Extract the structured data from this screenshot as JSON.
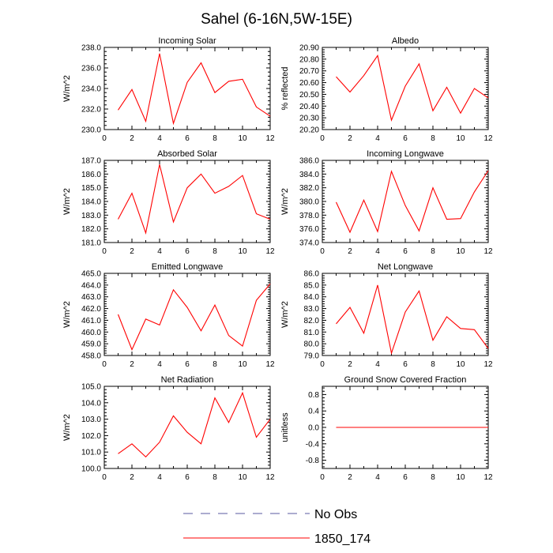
{
  "figure": {
    "title": "Sahel (6-16N,5W-15E)",
    "legend": [
      {
        "label": "No Obs",
        "color": "#5a5aa0",
        "style": "dashed"
      },
      {
        "label": "1850_174",
        "color": "#ff0000",
        "style": "solid"
      }
    ]
  },
  "chart_data": [
    {
      "type": "line",
      "title": "Incoming Solar",
      "ylabel": "W/m^2",
      "xlim": [
        0,
        12
      ],
      "xticks": [
        0,
        2,
        4,
        6,
        8,
        10,
        12
      ],
      "ylim": [
        230,
        238
      ],
      "yticks": [
        230,
        232,
        234,
        236,
        238
      ],
      "ydecimals": 1,
      "series": [
        {
          "color": "#ff0000",
          "x": [
            1,
            2,
            3,
            4,
            5,
            6,
            7,
            8,
            9,
            10,
            11,
            12
          ],
          "y": [
            231.9,
            233.9,
            230.8,
            237.4,
            230.6,
            234.6,
            236.5,
            233.6,
            234.7,
            234.9,
            232.2,
            231.3
          ]
        }
      ]
    },
    {
      "type": "line",
      "title": "Albedo",
      "ylabel": "% reflected",
      "xlim": [
        0,
        12
      ],
      "xticks": [
        0,
        2,
        4,
        6,
        8,
        10,
        12
      ],
      "ylim": [
        20.2,
        20.9
      ],
      "yticks": [
        20.2,
        20.3,
        20.4,
        20.5,
        20.6,
        20.7,
        20.8,
        20.9
      ],
      "ydecimals": 2,
      "series": [
        {
          "color": "#ff0000",
          "x": [
            1,
            2,
            3,
            4,
            5,
            6,
            7,
            8,
            9,
            10,
            11,
            12
          ],
          "y": [
            20.65,
            20.52,
            20.66,
            20.83,
            20.28,
            20.57,
            20.76,
            20.36,
            20.56,
            20.34,
            20.55,
            20.47
          ]
        }
      ]
    },
    {
      "type": "line",
      "title": "Absorbed Solar",
      "ylabel": "W/m^2",
      "xlim": [
        0,
        12
      ],
      "xticks": [
        0,
        2,
        4,
        6,
        8,
        10,
        12
      ],
      "ylim": [
        181,
        187
      ],
      "yticks": [
        181,
        182,
        183,
        184,
        185,
        186,
        187
      ],
      "ydecimals": 1,
      "series": [
        {
          "color": "#ff0000",
          "x": [
            1,
            2,
            3,
            4,
            5,
            6,
            7,
            8,
            9,
            10,
            11,
            12
          ],
          "y": [
            182.7,
            184.6,
            181.7,
            186.7,
            182.5,
            185.0,
            186.0,
            184.6,
            185.1,
            185.9,
            183.1,
            182.7
          ]
        }
      ]
    },
    {
      "type": "line",
      "title": "Incoming Longwave",
      "ylabel": "W/m^2",
      "xlim": [
        0,
        12
      ],
      "xticks": [
        0,
        2,
        4,
        6,
        8,
        10,
        12
      ],
      "ylim": [
        374,
        386
      ],
      "yticks": [
        374,
        376,
        378,
        380,
        382,
        384,
        386
      ],
      "ydecimals": 1,
      "series": [
        {
          "color": "#ff0000",
          "x": [
            1,
            2,
            3,
            4,
            5,
            6,
            7,
            8,
            9,
            10,
            11,
            12
          ],
          "y": [
            379.9,
            375.5,
            380.2,
            375.6,
            384.4,
            379.4,
            375.7,
            382.0,
            377.4,
            377.5,
            381.4,
            384.5
          ]
        }
      ]
    },
    {
      "type": "line",
      "title": "Emitted Longwave",
      "ylabel": "W/m^2",
      "xlim": [
        0,
        12
      ],
      "xticks": [
        0,
        2,
        4,
        6,
        8,
        10,
        12
      ],
      "ylim": [
        458,
        465
      ],
      "yticks": [
        458,
        459,
        460,
        461,
        462,
        463,
        464,
        465
      ],
      "ydecimals": 1,
      "series": [
        {
          "color": "#ff0000",
          "x": [
            1,
            2,
            3,
            4,
            5,
            6,
            7,
            8,
            9,
            10,
            11,
            12
          ],
          "y": [
            461.5,
            458.5,
            461.1,
            460.6,
            463.6,
            462.1,
            460.1,
            462.3,
            459.7,
            458.8,
            462.7,
            464.1
          ]
        }
      ]
    },
    {
      "type": "line",
      "title": "Net Longwave",
      "ylabel": "W/m^2",
      "xlim": [
        0,
        12
      ],
      "xticks": [
        0,
        2,
        4,
        6,
        8,
        10,
        12
      ],
      "ylim": [
        79,
        86
      ],
      "yticks": [
        79,
        80,
        81,
        82,
        83,
        84,
        85,
        86
      ],
      "ydecimals": 1,
      "series": [
        {
          "color": "#ff0000",
          "x": [
            1,
            2,
            3,
            4,
            5,
            6,
            7,
            8,
            9,
            10,
            11,
            12
          ],
          "y": [
            81.7,
            83.1,
            80.9,
            85.0,
            79.2,
            82.7,
            84.5,
            80.3,
            82.3,
            81.3,
            81.2,
            79.6
          ]
        }
      ]
    },
    {
      "type": "line",
      "title": "Net Radiation",
      "ylabel": "W/m^2",
      "xlim": [
        0,
        12
      ],
      "xticks": [
        0,
        2,
        4,
        6,
        8,
        10,
        12
      ],
      "ylim": [
        100,
        105
      ],
      "yticks": [
        100,
        101,
        102,
        103,
        104,
        105
      ],
      "ydecimals": 1,
      "series": [
        {
          "color": "#ff0000",
          "x": [
            1,
            2,
            3,
            4,
            5,
            6,
            7,
            8,
            9,
            10,
            11,
            12
          ],
          "y": [
            100.9,
            101.5,
            100.7,
            101.6,
            103.2,
            102.2,
            101.5,
            104.3,
            102.8,
            104.6,
            101.9,
            103.0
          ]
        }
      ]
    },
    {
      "type": "line",
      "title": "Ground Snow Covered Fraction",
      "ylabel": "unitless",
      "xlim": [
        0,
        12
      ],
      "xticks": [
        0,
        2,
        4,
        6,
        8,
        10,
        12
      ],
      "ylim": [
        -1,
        1
      ],
      "yticks": [
        -0.8,
        -0.4,
        0.0,
        0.4,
        0.8
      ],
      "ydecimals": 1,
      "series": [
        {
          "color": "#ff0000",
          "x": [
            1,
            2,
            3,
            4,
            5,
            6,
            7,
            8,
            9,
            10,
            11,
            12
          ],
          "y": [
            0,
            0,
            0,
            0,
            0,
            0,
            0,
            0,
            0,
            0,
            0,
            0
          ]
        }
      ]
    }
  ]
}
